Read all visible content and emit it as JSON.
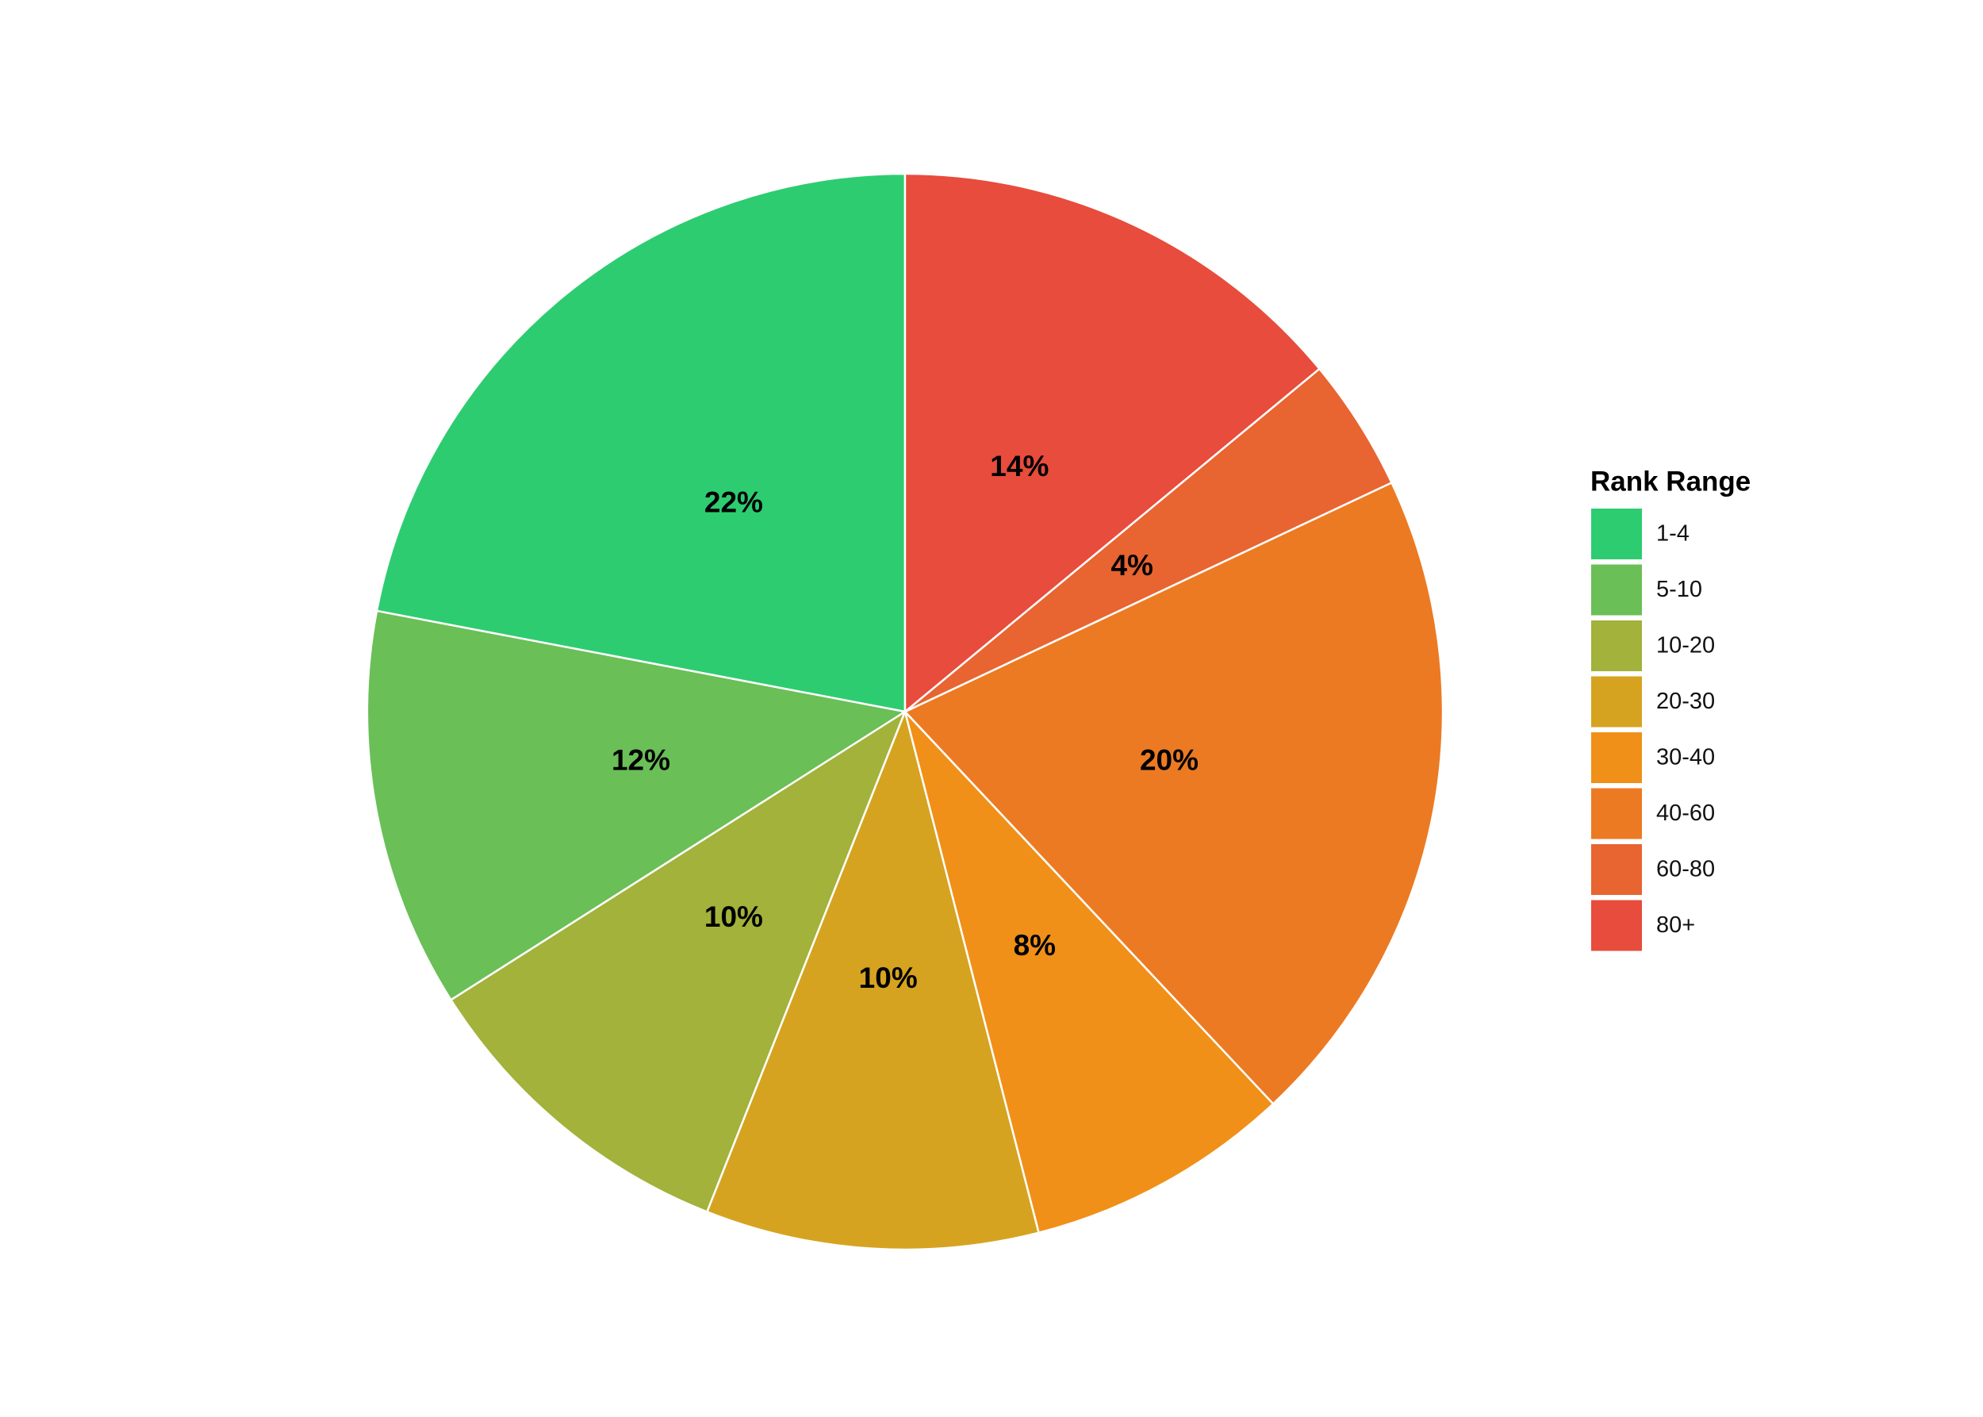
{
  "chart_data": {
    "type": "pie",
    "legend_title": "Rank Range",
    "categories": [
      "1-4",
      "5-10",
      "10-20",
      "20-30",
      "30-40",
      "40-60",
      "60-80",
      "80+"
    ],
    "values": [
      22,
      12,
      10,
      10,
      8,
      20,
      4,
      14
    ],
    "value_labels": [
      "22%",
      "12%",
      "10%",
      "10%",
      "8%",
      "20%",
      "4%",
      "14%"
    ],
    "colors": [
      "#2ecc71",
      "#6abf57",
      "#a2b23a",
      "#d6a321",
      "#f09018",
      "#ec7a23",
      "#e86431",
      "#e74c3c"
    ],
    "direction": "counterclockwise",
    "legend": "right"
  }
}
